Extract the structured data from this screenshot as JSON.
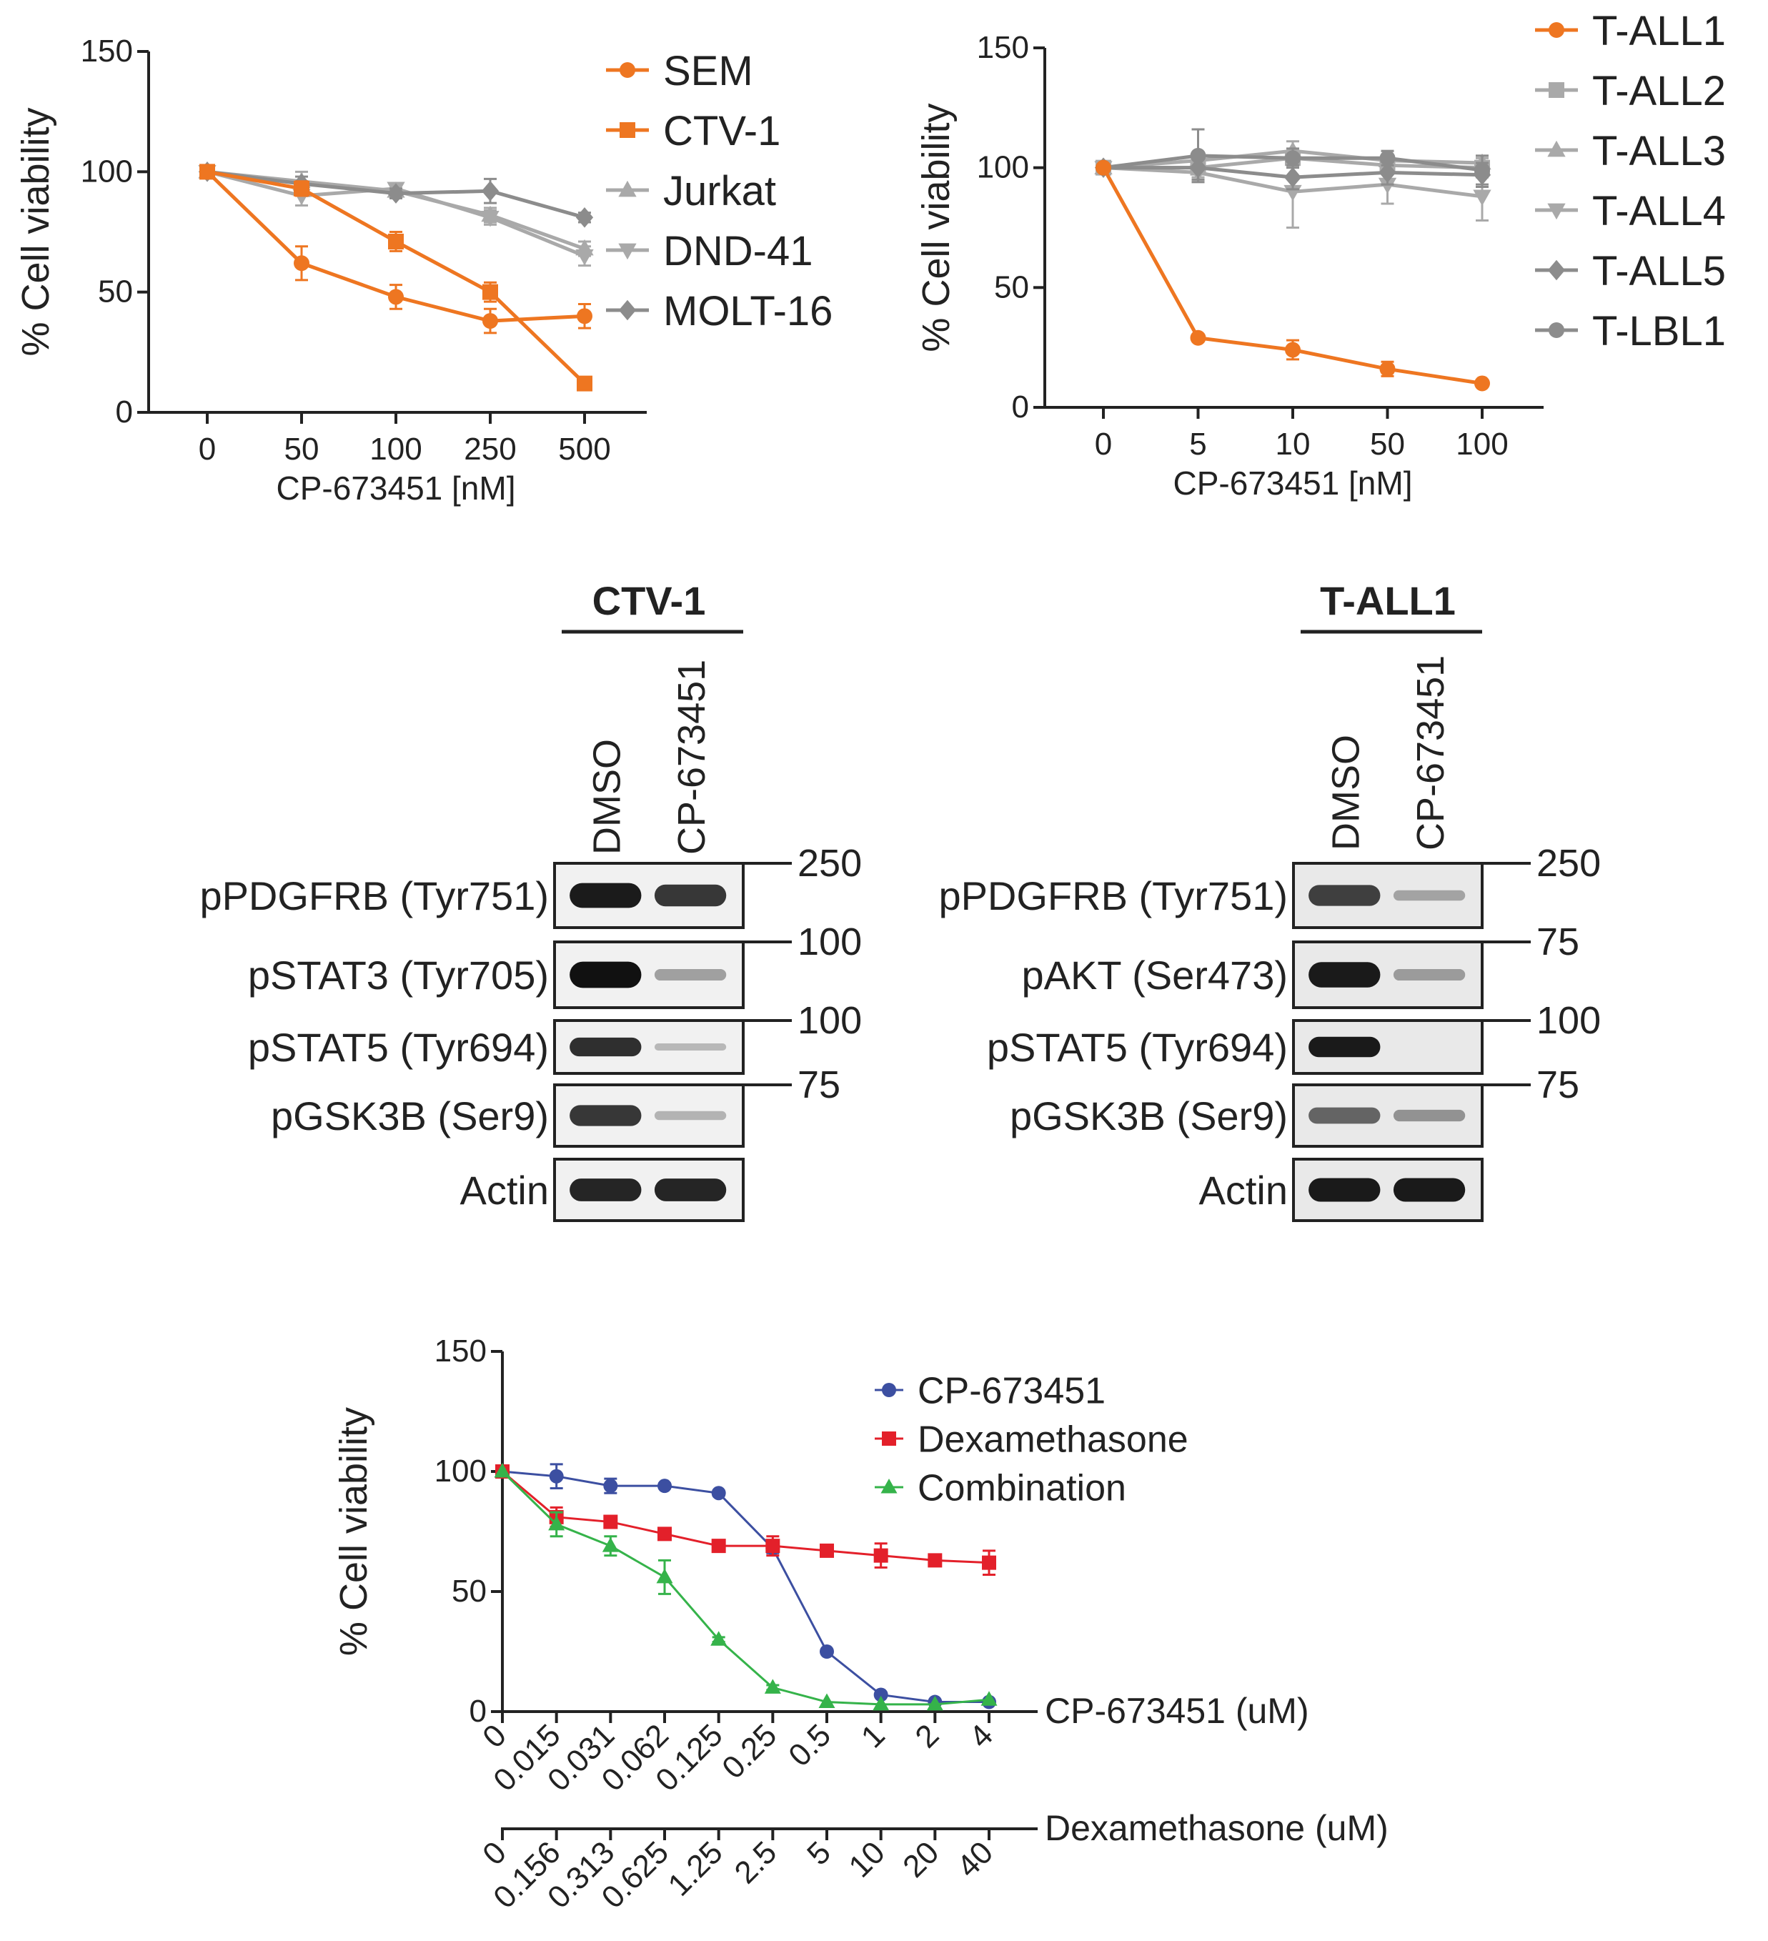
{
  "chart_data": [
    {
      "id": "panel-a",
      "type": "line",
      "title": "",
      "xlabel": "CP-673451 [nM]",
      "ylabel": "% Cell viability",
      "categories": [
        "0",
        "50",
        "100",
        "250",
        "500"
      ],
      "yticks": [
        "0",
        "50",
        "100",
        "150"
      ],
      "ylim": [
        0,
        150
      ],
      "legend_position": "top-right",
      "series": [
        {
          "name": "SEM",
          "marker": "circle",
          "color": "#ee7621",
          "values": [
            100,
            62,
            48,
            38,
            40
          ],
          "err": [
            0,
            7,
            5,
            5,
            5
          ]
        },
        {
          "name": "CTV-1",
          "marker": "square",
          "color": "#ee7621",
          "values": [
            100,
            93,
            71,
            50,
            12
          ],
          "err": [
            0,
            3,
            4,
            4,
            2
          ]
        },
        {
          "name": "Jurkat",
          "marker": "triangle",
          "color": "#a9a9a9",
          "values": [
            100,
            96,
            92,
            82,
            68
          ],
          "err": [
            0,
            4,
            3,
            3,
            3
          ]
        },
        {
          "name": "DND-41",
          "marker": "triangle-down",
          "color": "#a9a9a9",
          "values": [
            100,
            90,
            93,
            81,
            65
          ],
          "err": [
            0,
            4,
            2,
            3,
            4
          ]
        },
        {
          "name": "MOLT-16",
          "marker": "diamond",
          "color": "#8c8c8c",
          "values": [
            100,
            95,
            91,
            92,
            81
          ],
          "err": [
            0,
            3,
            2,
            5,
            2
          ]
        }
      ]
    },
    {
      "id": "panel-b",
      "type": "line",
      "title": "",
      "xlabel": "CP-673451 [nM]",
      "ylabel": "% Cell viability",
      "categories": [
        "0",
        "5",
        "10",
        "50",
        "100"
      ],
      "yticks": [
        "0",
        "50",
        "100",
        "150"
      ],
      "ylim": [
        0,
        150
      ],
      "legend_position": "top-right",
      "series": [
        {
          "name": "T-ALL1",
          "marker": "circle",
          "color": "#ee7621",
          "values": [
            100,
            29,
            24,
            16,
            10
          ],
          "err": [
            0,
            1,
            4,
            3,
            1
          ]
        },
        {
          "name": "T-ALL2",
          "marker": "square",
          "color": "#a9a9a9",
          "values": [
            100,
            100,
            104,
            101,
            100
          ],
          "err": [
            0,
            4,
            3,
            3,
            4
          ]
        },
        {
          "name": "T-ALL3",
          "marker": "triangle",
          "color": "#a9a9a9",
          "values": [
            100,
            103,
            107,
            103,
            102
          ],
          "err": [
            0,
            3,
            4,
            4,
            3
          ]
        },
        {
          "name": "T-ALL4",
          "marker": "triangle-down",
          "color": "#a9a9a9",
          "values": [
            100,
            98,
            90,
            93,
            88
          ],
          "err": [
            0,
            4,
            15,
            8,
            10
          ]
        },
        {
          "name": "T-ALL5",
          "marker": "diamond",
          "color": "#8c8c8c",
          "values": [
            100,
            100,
            96,
            98,
            97
          ],
          "err": [
            0,
            5,
            5,
            5,
            5
          ]
        },
        {
          "name": "T-LBL1",
          "marker": "circle",
          "color": "#8c8c8c",
          "values": [
            100,
            105,
            104,
            104,
            99
          ],
          "err": [
            0,
            11,
            4,
            3,
            6
          ]
        }
      ]
    },
    {
      "id": "panel-e",
      "type": "line",
      "title": "",
      "xlabel": "CP-673451 (uM)",
      "xlabel2": "Dexamethasone (uM)",
      "ylabel": "% Cell viability",
      "categories": [
        "0",
        "0.015",
        "0.031",
        "0.062",
        "0.125",
        "0.25",
        "0.5",
        "1",
        "2",
        "4"
      ],
      "categories2": [
        "0",
        "0.156",
        "0.313",
        "0.625",
        "1.25",
        "2.5",
        "5",
        "10",
        "20",
        "40"
      ],
      "yticks": [
        "0",
        "50",
        "100",
        "150"
      ],
      "ylim": [
        0,
        150
      ],
      "legend_position": "top-right",
      "series": [
        {
          "name": "CP-673451",
          "marker": "circle",
          "color": "#3c4fa1",
          "values": [
            100,
            98,
            94,
            94,
            91,
            68,
            25,
            7,
            4,
            4
          ],
          "err": [
            0,
            5,
            3,
            1,
            1,
            2,
            0,
            0,
            0,
            0
          ]
        },
        {
          "name": "Dexamethasone",
          "marker": "square",
          "color": "#e3202a",
          "values": [
            100,
            81,
            79,
            74,
            69,
            69,
            67,
            65,
            63,
            62
          ],
          "err": [
            0,
            4,
            2,
            2,
            2,
            4,
            2,
            5,
            2,
            5
          ]
        },
        {
          "name": "Combination",
          "marker": "triangle",
          "color": "#35b34a",
          "values": [
            100,
            78,
            69,
            56,
            30,
            10,
            4,
            3,
            3,
            5
          ],
          "err": [
            0,
            5,
            4,
            7,
            1,
            1,
            0,
            0,
            0,
            0
          ]
        }
      ]
    }
  ],
  "blots": [
    {
      "id": "blot-ctv1",
      "title": "CTV-1",
      "lanes": [
        "DMSO",
        "CP-673451"
      ],
      "rows": [
        {
          "label": "pPDGFRB (Tyr751)",
          "marker": "250",
          "intensity": [
            0.95,
            0.8
          ]
        },
        {
          "label": "pSTAT3 (Tyr705)",
          "marker": "100",
          "intensity": [
            1.0,
            0.25
          ]
        },
        {
          "label": "pSTAT5 (Tyr694)",
          "marker": "100",
          "intensity": [
            0.85,
            0.12
          ]
        },
        {
          "label": "pGSK3B (Ser9)",
          "marker": "75",
          "intensity": [
            0.8,
            0.15
          ]
        },
        {
          "label": "Actin",
          "marker": "",
          "intensity": [
            0.9,
            0.9
          ]
        }
      ]
    },
    {
      "id": "blot-tall1",
      "title": "T-ALL1",
      "lanes": [
        "DMSO",
        "CP-673451"
      ],
      "rows": [
        {
          "label": "pPDGFRB (Tyr751)",
          "marker": "250",
          "intensity": [
            0.75,
            0.2
          ]
        },
        {
          "label": "pAKT (Ser473)",
          "marker": "75",
          "intensity": [
            0.95,
            0.25
          ]
        },
        {
          "label": "pSTAT5 (Tyr694)",
          "marker": "100",
          "intensity": [
            0.95,
            0.0
          ]
        },
        {
          "label": "pGSK3B (Ser9)",
          "marker": "75",
          "intensity": [
            0.55,
            0.3
          ]
        },
        {
          "label": "Actin",
          "marker": "",
          "intensity": [
            0.95,
            0.95
          ]
        }
      ]
    }
  ]
}
